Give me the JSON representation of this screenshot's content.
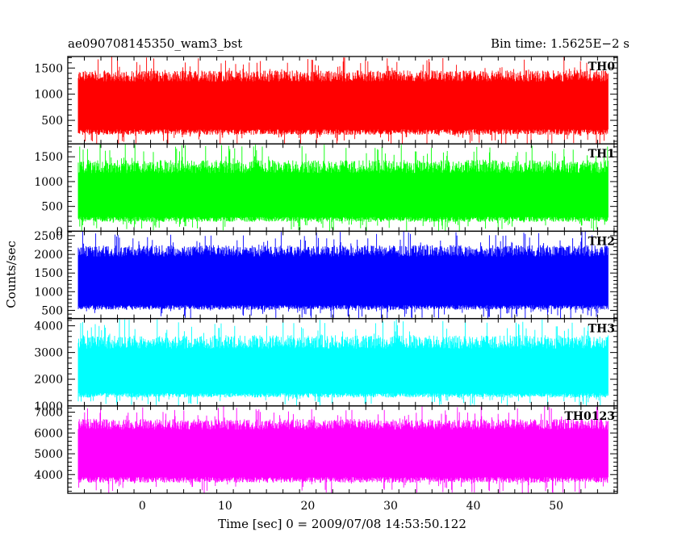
{
  "chart_data": {
    "type": "line",
    "title": "ae090708145350_wam3_bst",
    "subtitle": "Bin time: 1.5625E−2 s",
    "xlabel": "Time [sec] 0 = 2009/07/08 14:53:50.122",
    "ylabel": "Counts/sec",
    "xlim": [
      -9,
      57.4
    ],
    "x_ticks": [
      0,
      10,
      20,
      30,
      40,
      50
    ],
    "x_data_range": [
      -7.7,
      56.3
    ],
    "bin_time": 0.015625,
    "grid": false,
    "panels": [
      {
        "name": "TH0",
        "color": "#ff0000",
        "ylim": [
          50,
          1720
        ],
        "y_ticks": [
          500,
          1000,
          1500
        ],
        "band": {
          "base_low": 330,
          "base_high": 1240,
          "min_low": 20,
          "max_high": 1720
        }
      },
      {
        "name": "TH1",
        "color": "#00ff00",
        "ylim": [
          0,
          1760
        ],
        "y_ticks": [
          0,
          500,
          1000,
          1500
        ],
        "band": {
          "base_low": 290,
          "base_high": 1170,
          "min_low": 0,
          "max_high": 1760
        }
      },
      {
        "name": "TH2",
        "color": "#0000ff",
        "ylim": [
          280,
          2620
        ],
        "y_ticks": [
          500,
          1000,
          1500,
          2000,
          2500
        ],
        "band": {
          "base_low": 640,
          "base_high": 1940,
          "min_low": 280,
          "max_high": 2620
        }
      },
      {
        "name": "TH3",
        "color": "#00ffff",
        "ylim": [
          1000,
          4270
        ],
        "y_ticks": [
          1000,
          2000,
          3000,
          4000
        ],
        "band": {
          "base_low": 1480,
          "base_high": 3140,
          "min_low": 1000,
          "max_high": 4270
        }
      },
      {
        "name": "TH0123",
        "color": "#ff00ff",
        "ylim": [
          3100,
          7300
        ],
        "y_ticks": [
          4000,
          5000,
          6000,
          7000
        ],
        "band": {
          "base_low": 3880,
          "base_high": 6160,
          "min_low": 3100,
          "max_high": 7300
        }
      }
    ]
  }
}
